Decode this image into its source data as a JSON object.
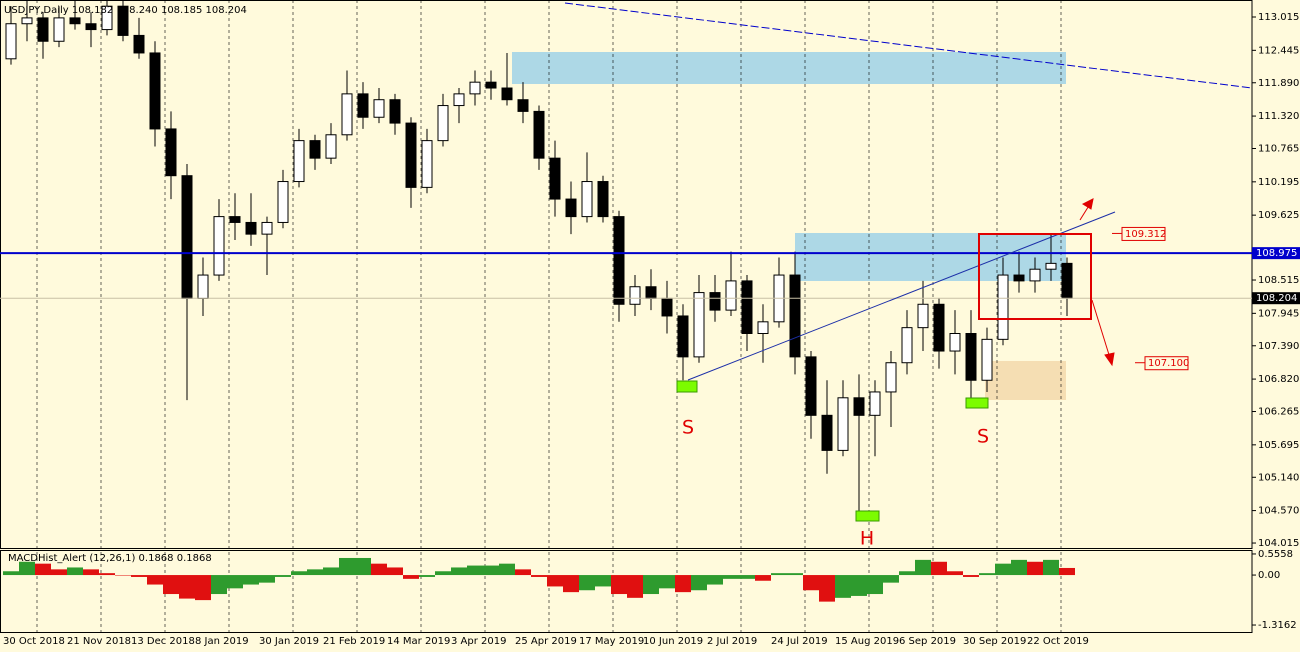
{
  "chart_data": [
    {
      "type": "candlestick",
      "title": "USDJPY,Daily  108.182 108.240 108.185 108.204",
      "categories": [
        "30 Oct 2018",
        null,
        null,
        null,
        "21 Nov 2018",
        null,
        null,
        null,
        "13 Dec 2018",
        null,
        null,
        null,
        "8 Jan 2019",
        null,
        null,
        null,
        "30 Jan 2019",
        null,
        null,
        null,
        "21 Feb 2019",
        null,
        null,
        null,
        "14 Mar 2019",
        null,
        null,
        null,
        "3 Apr 2019",
        null,
        null,
        null,
        "25 Apr 2019",
        null,
        null,
        null,
        "17 May 2019",
        null,
        null,
        null,
        "10 Jun 2019",
        null,
        null,
        null,
        "2 Jul 2019",
        null,
        null,
        null,
        "24 Jul 2019",
        null,
        null,
        null,
        "15 Aug 2019",
        null,
        null,
        null,
        "6 Sep 2019",
        null,
        null,
        null,
        "30 Sep 2019",
        null,
        null,
        null,
        "22 Oct 2019",
        null,
        null
      ],
      "open": [
        112.3,
        112.9,
        113.0,
        112.6,
        113.0,
        112.9,
        112.8,
        113.2,
        112.7,
        112.4,
        111.1,
        110.3,
        108.2,
        108.6,
        109.6,
        109.5,
        109.3,
        109.5,
        110.2,
        110.9,
        110.6,
        111.0,
        111.7,
        111.3,
        111.6,
        111.2,
        110.1,
        110.9,
        111.5,
        111.7,
        111.9,
        111.8,
        111.6,
        111.4,
        110.6,
        109.9,
        109.6,
        110.2,
        109.6,
        108.1,
        108.4,
        108.2,
        107.9,
        107.2,
        108.3,
        108.0,
        108.5,
        107.6,
        107.8,
        108.6,
        107.2,
        106.2,
        105.6,
        106.5,
        106.2,
        106.6,
        107.1,
        107.7,
        108.1,
        107.3,
        107.6,
        106.8,
        107.5,
        108.6,
        108.5,
        108.7,
        108.8
      ],
      "high": [
        113.2,
        113.3,
        113.1,
        113.2,
        113.3,
        113.1,
        113.3,
        113.3,
        113.0,
        112.6,
        111.4,
        110.5,
        108.9,
        109.9,
        110.0,
        110.0,
        109.6,
        110.4,
        111.1,
        111.0,
        111.2,
        112.1,
        111.9,
        111.8,
        111.7,
        111.3,
        111.1,
        111.7,
        111.8,
        112.1,
        112.1,
        112.4,
        111.9,
        111.5,
        110.9,
        110.2,
        110.7,
        110.3,
        109.7,
        108.6,
        108.7,
        108.5,
        108.1,
        108.6,
        108.6,
        109.0,
        108.6,
        108.1,
        108.9,
        109.0,
        107.3,
        106.8,
        106.8,
        106.9,
        106.8,
        107.3,
        108.0,
        108.5,
        108.2,
        108.0,
        108.0,
        107.7,
        108.9,
        109.0,
        108.9,
        109.3,
        108.9
      ],
      "low": [
        112.2,
        112.6,
        112.3,
        112.5,
        112.8,
        112.5,
        112.7,
        112.6,
        112.3,
        110.8,
        109.9,
        106.46,
        107.9,
        108.5,
        109.2,
        109.1,
        108.6,
        109.4,
        110.1,
        110.4,
        110.5,
        110.9,
        111.1,
        111.2,
        111.0,
        109.75,
        110.0,
        110.8,
        111.2,
        111.5,
        111.6,
        111.5,
        111.2,
        110.4,
        109.6,
        109.3,
        109.5,
        109.5,
        107.8,
        107.9,
        108.0,
        107.6,
        106.8,
        107.1,
        107.8,
        107.9,
        107.3,
        107.1,
        107.7,
        106.9,
        105.8,
        105.2,
        105.5,
        104.5,
        105.5,
        106.0,
        106.9,
        107.3,
        107.0,
        106.9,
        106.5,
        106.6,
        107.4,
        108.3,
        108.3,
        108.5,
        107.9
      ],
      "close": [
        112.9,
        113.0,
        112.6,
        113.0,
        112.9,
        112.8,
        113.2,
        112.7,
        112.4,
        111.1,
        110.3,
        108.2,
        108.6,
        109.6,
        109.5,
        109.3,
        109.5,
        110.2,
        110.9,
        110.6,
        111.0,
        111.7,
        111.3,
        111.6,
        111.2,
        110.1,
        110.9,
        111.5,
        111.7,
        111.9,
        111.8,
        111.6,
        111.4,
        110.6,
        109.9,
        109.6,
        110.2,
        109.6,
        108.1,
        108.4,
        108.2,
        107.9,
        107.2,
        108.3,
        108.0,
        108.5,
        107.6,
        107.8,
        108.6,
        107.2,
        106.2,
        105.6,
        106.5,
        106.2,
        106.6,
        107.1,
        107.7,
        108.1,
        107.3,
        107.6,
        106.8,
        107.5,
        108.6,
        108.5,
        108.7,
        108.8,
        108.204
      ],
      "up_color": "#ffffff",
      "down_color": "#000000",
      "ylim": [
        103.93,
        113.306
      ],
      "yticks": [
        113.015,
        112.445,
        {
          "value": 111.89,
          "label": "111.890"
        },
        {
          "value": 111.32,
          "label": "111.320"
        },
        110.765,
        110.195,
        109.625,
        108.515,
        107.945,
        {
          "value": 107.39,
          "label": "107.390"
        },
        {
          "value": 106.82,
          "label": "106.820"
        },
        106.265,
        105.695,
        {
          "value": 105.14,
          "label": "105.140"
        },
        {
          "value": 104.57,
          "label": "104.570"
        },
        104.015
      ],
      "price_lines": [
        {
          "value": 108.975,
          "color": "#0000cc"
        },
        {
          "value": 108.204,
          "color": "#000000"
        }
      ],
      "callouts": [
        109.312,
        {
          "value": 107.1,
          "label": "107.100"
        }
      ],
      "pattern_labels": [
        "S",
        "H",
        "S"
      ]
    },
    {
      "type": "bar",
      "title": "MACDHist_Alert (12,26,1)  0.1868 0.1868",
      "values": [
        0.1,
        0.35,
        0.3,
        0.15,
        0.2,
        0.15,
        0.05,
        0.0,
        -0.05,
        -0.25,
        -0.5,
        -0.62,
        -0.66,
        -0.5,
        -0.35,
        -0.25,
        -0.2,
        -0.05,
        0.1,
        0.15,
        0.2,
        0.45,
        0.45,
        0.3,
        0.2,
        -0.1,
        -0.05,
        0.1,
        0.2,
        0.25,
        0.25,
        0.3,
        0.15,
        -0.05,
        -0.3,
        -0.45,
        -0.4,
        -0.3,
        -0.5,
        -0.6,
        -0.5,
        -0.35,
        -0.45,
        -0.4,
        -0.25,
        -0.1,
        -0.1,
        -0.15,
        0.05,
        0.05,
        -0.4,
        -0.7,
        -0.6,
        -0.55,
        -0.5,
        -0.2,
        0.1,
        0.4,
        0.35,
        0.1,
        -0.05,
        0.05,
        0.3,
        0.4,
        0.35,
        0.4,
        0.1868
      ],
      "up_color": "#2e9b2e",
      "down_color": "#e01010",
      "ylim": [
        -1.5,
        0.66
      ],
      "yticks": [
        0.5558,
        {
          "value": 0,
          "label": "0.00"
        },
        -1.3162
      ]
    }
  ]
}
